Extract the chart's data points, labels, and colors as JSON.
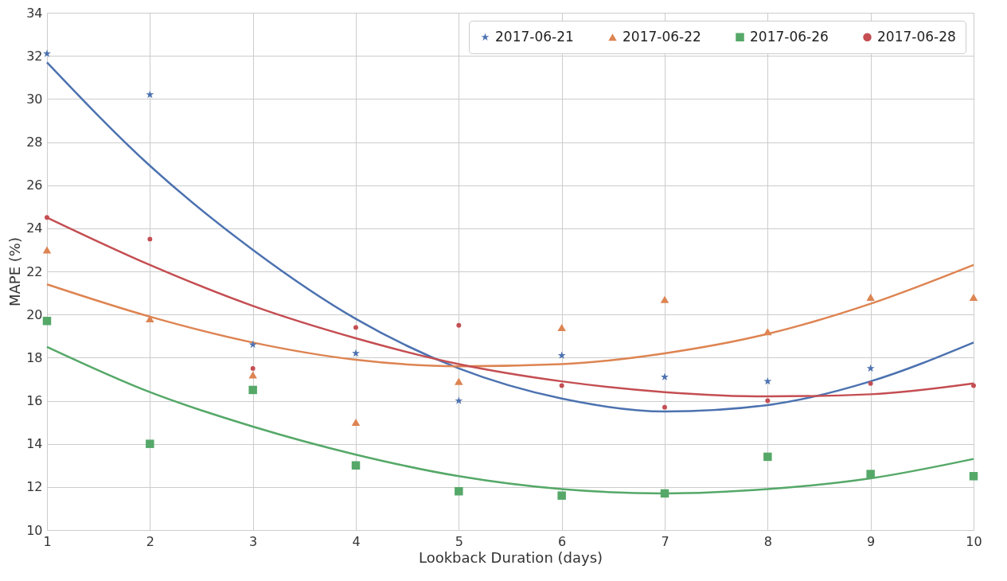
{
  "chart_data": {
    "type": "scatter",
    "xlabel": "Lookback Duration (days)",
    "ylabel": "MAPE (%)",
    "x": [
      1,
      2,
      3,
      4,
      5,
      6,
      7,
      8,
      9,
      10
    ],
    "xlim": [
      1,
      10
    ],
    "xticks": [
      1,
      2,
      3,
      4,
      5,
      6,
      7,
      8,
      9,
      10
    ],
    "ylim": [
      10,
      34
    ],
    "yticks": [
      10,
      12,
      14,
      16,
      18,
      20,
      22,
      24,
      26,
      28,
      30,
      32,
      34
    ],
    "grid": true,
    "legend": "top right",
    "series": [
      {
        "name": "2017-06-21",
        "color": "#4c72b0",
        "marker": "star",
        "values": [
          32.1,
          30.2,
          18.6,
          18.2,
          16.0,
          18.1,
          17.1,
          16.9,
          17.5,
          null
        ]
      },
      {
        "name": "2017-06-22",
        "color": "#dd8452",
        "marker": "triangle",
        "values": [
          23.0,
          19.8,
          17.2,
          15.0,
          16.9,
          19.4,
          20.7,
          19.2,
          20.8,
          20.8
        ]
      },
      {
        "name": "2017-06-26",
        "color": "#55a868",
        "marker": "square",
        "values": [
          19.7,
          14.0,
          16.5,
          13.0,
          11.8,
          11.6,
          11.7,
          13.4,
          12.6,
          12.5
        ]
      },
      {
        "name": "2017-06-28",
        "color": "#c44e52",
        "marker": "circle",
        "values": [
          24.5,
          23.5,
          17.5,
          19.4,
          19.5,
          16.7,
          15.7,
          16.0,
          16.8,
          16.7
        ]
      },
      {
        "type": "line",
        "color": "#4c72b0",
        "marker": "none",
        "values": [
          31.7,
          26.9,
          23.0,
          19.8,
          17.5,
          16.1,
          15.5,
          15.8,
          16.9,
          18.7
        ]
      },
      {
        "type": "line",
        "color": "#dd8452",
        "marker": "none",
        "values": [
          21.4,
          19.9,
          18.7,
          17.9,
          17.6,
          17.7,
          18.2,
          19.1,
          20.5,
          22.3
        ]
      },
      {
        "type": "line",
        "color": "#55a868",
        "marker": "none",
        "values": [
          18.5,
          16.4,
          14.8,
          13.5,
          12.5,
          11.9,
          11.7,
          11.9,
          12.4,
          13.3
        ]
      },
      {
        "type": "line",
        "color": "#c44e52",
        "marker": "none",
        "values": [
          24.5,
          22.3,
          20.4,
          18.9,
          17.7,
          16.9,
          16.4,
          16.2,
          16.3,
          16.8
        ]
      }
    ]
  }
}
